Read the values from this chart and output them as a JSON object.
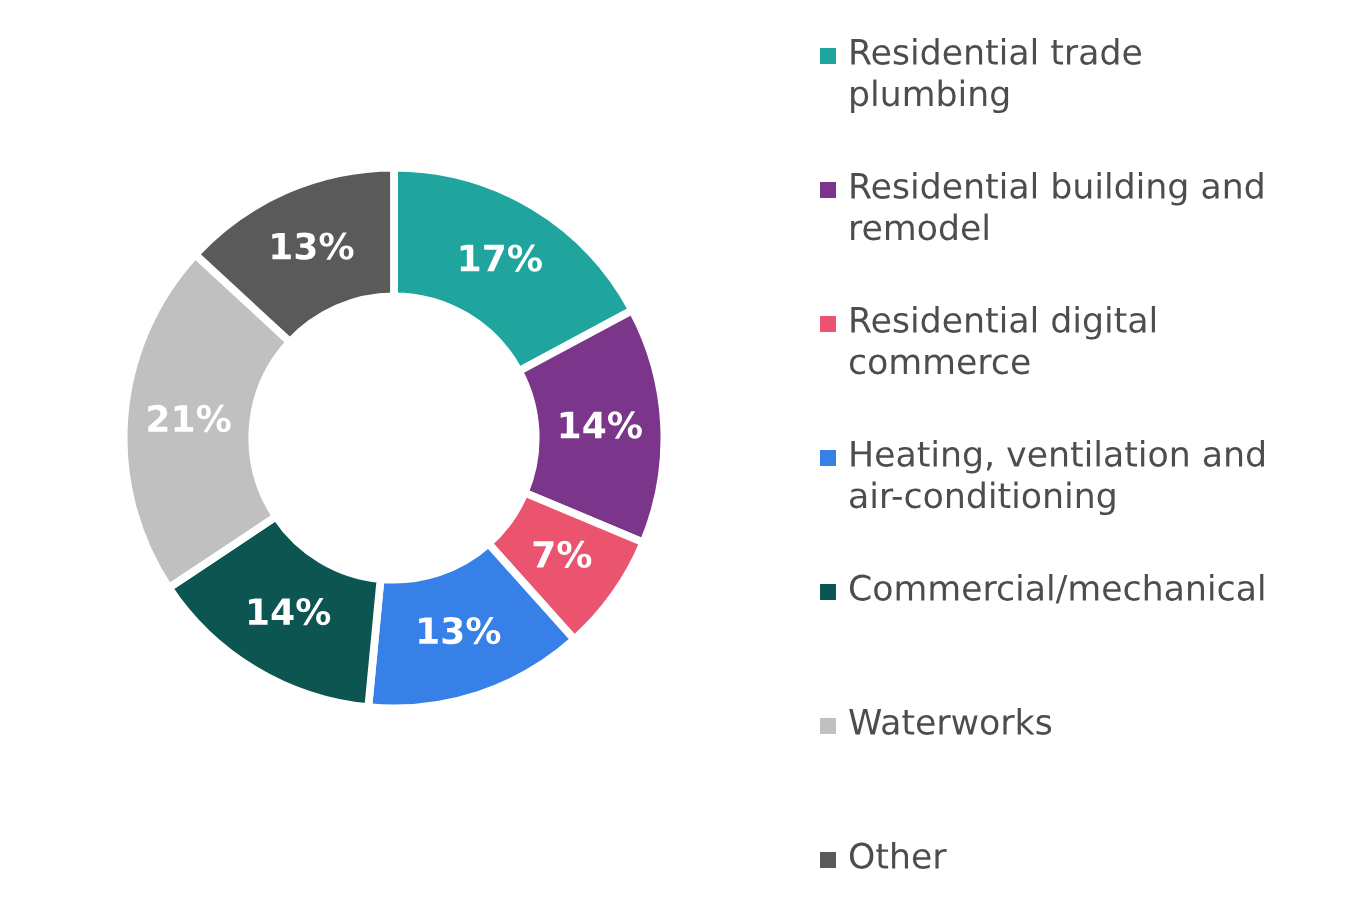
{
  "chart_data": {
    "type": "donut",
    "categories": [
      "Residential trade\nplumbing",
      "Residential building and\nremodel",
      "Residential digital\ncommerce",
      "Heating, ventilation and\nair-conditioning",
      "Commercial/mechanical",
      "Waterworks",
      "Other"
    ],
    "values": [
      17,
      14,
      7,
      13,
      14,
      21,
      13
    ],
    "value_labels": [
      "17%",
      "14%",
      "7%",
      "13%",
      "14%",
      "21%",
      "13%"
    ],
    "colors": [
      "#1fa59e",
      "#7b368b",
      "#ea546f",
      "#3780e8",
      "#0d5550",
      "#c0c0c0",
      "#5a5a5a"
    ],
    "legend": "right"
  }
}
